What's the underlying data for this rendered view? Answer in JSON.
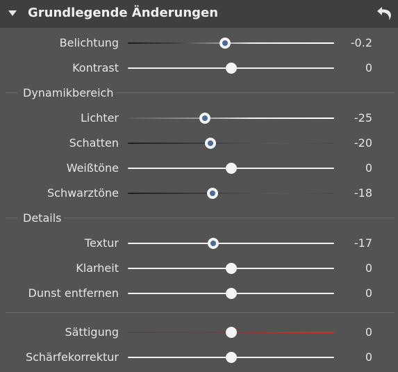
{
  "header": {
    "title": "Grundlegende Änderungen",
    "undo_icon": "undo-arrow-icon",
    "caret_icon": "caret-down-icon"
  },
  "colors": {
    "background": "#535353",
    "header_bg": "#3f3f3f",
    "knob_modified_dot": "#4b6c99",
    "saturation_positive": "#c8302c"
  },
  "sliders": [
    {
      "id": "belichtung",
      "label": "Belichtung",
      "value": "-0.2",
      "position": 0.47,
      "modified": true,
      "track": "exposure"
    },
    {
      "id": "kontrast",
      "label": "Kontrast",
      "value": "0",
      "position": 0.5,
      "modified": false,
      "track": "plain"
    },
    {
      "id": "lichter",
      "label": "Lichter",
      "value": "-25",
      "position": 0.375,
      "modified": true,
      "track": "plain"
    },
    {
      "id": "schatten",
      "label": "Schatten",
      "value": "-20",
      "position": 0.4,
      "modified": true,
      "track": "dark"
    },
    {
      "id": "weisstoene",
      "label": "Weißtöne",
      "value": "0",
      "position": 0.5,
      "modified": false,
      "track": "plain"
    },
    {
      "id": "schwarztoene",
      "label": "Schwarztöne",
      "value": "-18",
      "position": 0.41,
      "modified": true,
      "track": "dark"
    },
    {
      "id": "textur",
      "label": "Textur",
      "value": "-17",
      "position": 0.415,
      "modified": true,
      "track": "plain"
    },
    {
      "id": "klarheit",
      "label": "Klarheit",
      "value": "0",
      "position": 0.5,
      "modified": false,
      "track": "plain"
    },
    {
      "id": "dunst",
      "label": "Dunst entfernen",
      "value": "0",
      "position": 0.5,
      "modified": false,
      "track": "plain"
    },
    {
      "id": "saettigung",
      "label": "Sättigung",
      "value": "0",
      "position": 0.5,
      "modified": false,
      "track": "saturation"
    },
    {
      "id": "schaerfe",
      "label": "Schärfekorrektur",
      "value": "0",
      "position": 0.5,
      "modified": false,
      "track": "plain"
    }
  ],
  "sections": {
    "dynamik": "Dynamikbereich",
    "details": "Details"
  }
}
